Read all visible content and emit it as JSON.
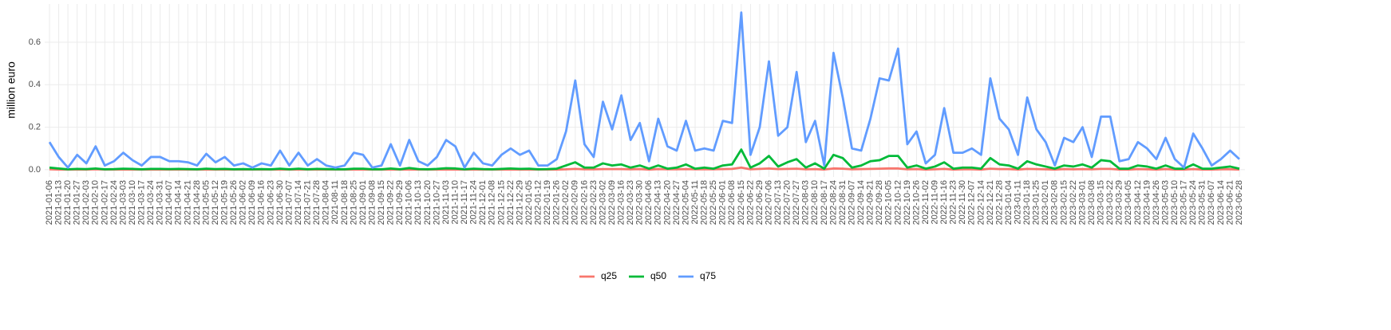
{
  "chart_data": {
    "type": "line",
    "y_label": "million euro",
    "categories": [
      "2021-01-06",
      "2021-01-13",
      "2021-01-20",
      "2021-01-27",
      "2021-02-03",
      "2021-02-10",
      "2021-02-17",
      "2021-02-24",
      "2021-03-03",
      "2021-03-10",
      "2021-03-17",
      "2021-03-24",
      "2021-03-31",
      "2021-04-07",
      "2021-04-14",
      "2021-04-21",
      "2021-04-28",
      "2021-05-05",
      "2021-05-12",
      "2021-05-19",
      "2021-05-26",
      "2021-06-02",
      "2021-06-09",
      "2021-06-16",
      "2021-06-23",
      "2021-06-30",
      "2021-07-07",
      "2021-07-14",
      "2021-07-21",
      "2021-07-28",
      "2021-08-04",
      "2021-08-11",
      "2021-08-18",
      "2021-08-25",
      "2021-09-01",
      "2021-09-08",
      "2021-09-15",
      "2021-09-22",
      "2021-09-29",
      "2021-10-06",
      "2021-10-13",
      "2021-10-20",
      "2021-10-27",
      "2021-11-03",
      "2021-11-10",
      "2021-11-17",
      "2021-11-24",
      "2021-12-01",
      "2021-12-08",
      "2021-12-15",
      "2021-12-22",
      "2021-12-29",
      "2022-01-05",
      "2022-01-12",
      "2022-01-19",
      "2022-01-26",
      "2022-02-02",
      "2022-02-09",
      "2022-02-16",
      "2022-02-23",
      "2022-03-02",
      "2022-03-09",
      "2022-03-16",
      "2022-03-23",
      "2022-03-30",
      "2022-04-06",
      "2022-04-13",
      "2022-04-20",
      "2022-04-27",
      "2022-05-04",
      "2022-05-11",
      "2022-05-18",
      "2022-05-25",
      "2022-06-01",
      "2022-06-08",
      "2022-06-15",
      "2022-06-22",
      "2022-06-29",
      "2022-07-06",
      "2022-07-13",
      "2022-07-20",
      "2022-07-27",
      "2022-08-03",
      "2022-08-10",
      "2022-08-17",
      "2022-08-24",
      "2022-08-31",
      "2022-09-07",
      "2022-09-14",
      "2022-09-21",
      "2022-09-28",
      "2022-10-05",
      "2022-10-12",
      "2022-10-19",
      "2022-10-26",
      "2022-11-02",
      "2022-11-09",
      "2022-11-16",
      "2022-11-23",
      "2022-11-30",
      "2022-12-07",
      "2022-12-14",
      "2022-12-21",
      "2022-12-28",
      "2023-01-04",
      "2023-01-11",
      "2023-01-18",
      "2023-01-25",
      "2023-02-01",
      "2023-02-08",
      "2023-02-15",
      "2023-02-22",
      "2023-03-01",
      "2023-03-08",
      "2023-03-15",
      "2023-03-22",
      "2023-03-29",
      "2023-04-05",
      "2023-04-12",
      "2023-04-19",
      "2023-04-26",
      "2023-05-03",
      "2023-05-10",
      "2023-05-17",
      "2023-05-24",
      "2023-05-31",
      "2023-06-07",
      "2023-06-14",
      "2023-06-21",
      "2023-06-28"
    ],
    "series": [
      {
        "name": "q25",
        "color": "#F8766D",
        "values": [
          0.002,
          0.001,
          0.001,
          0.001,
          0.001,
          0.002,
          0.001,
          0.001,
          0.001,
          0.001,
          0.001,
          0.001,
          0.001,
          0.001,
          0.001,
          0.001,
          0.001,
          0.001,
          0.001,
          0.001,
          0.001,
          0.001,
          0.001,
          0.001,
          0.001,
          0.001,
          0.001,
          0.001,
          0.001,
          0.001,
          0.001,
          0.001,
          0.001,
          0.001,
          0.001,
          0.001,
          0.001,
          0.001,
          0.001,
          0.001,
          0.001,
          0.001,
          0.001,
          0.001,
          0.001,
          0.001,
          0.001,
          0.001,
          0.001,
          0.001,
          0.001,
          0.001,
          0.001,
          0.001,
          0.001,
          0.001,
          0.002,
          0.004,
          0.002,
          0.002,
          0.003,
          0.003,
          0.003,
          0.002,
          0.003,
          0.001,
          0.003,
          0.002,
          0.002,
          0.003,
          0.002,
          0.002,
          0.002,
          0.003,
          0.004,
          0.01,
          0.002,
          0.004,
          0.006,
          0.003,
          0.004,
          0.005,
          0.002,
          0.003,
          0.001,
          0.006,
          0.005,
          0.002,
          0.003,
          0.004,
          0.005,
          0.006,
          0.006,
          0.002,
          0.003,
          0.001,
          0.002,
          0.004,
          0.001,
          0.002,
          0.002,
          0.001,
          0.005,
          0.003,
          0.003,
          0.001,
          0.004,
          0.003,
          0.002,
          0.001,
          0.003,
          0.002,
          0.003,
          0.002,
          0.004,
          0.004,
          0.001,
          0.001,
          0.003,
          0.002,
          0.001,
          0.003,
          0.001,
          0.001,
          0.003,
          0.001,
          0.001,
          0.002,
          0.002,
          0.001
        ]
      },
      {
        "name": "q50",
        "color": "#00BA38",
        "values": [
          0.01,
          0.006,
          0.002,
          0.004,
          0.003,
          0.006,
          0.002,
          0.003,
          0.005,
          0.004,
          0.002,
          0.004,
          0.004,
          0.003,
          0.004,
          0.003,
          0.002,
          0.005,
          0.003,
          0.004,
          0.002,
          0.003,
          0.002,
          0.003,
          0.002,
          0.005,
          0.002,
          0.005,
          0.002,
          0.004,
          0.003,
          0.002,
          0.002,
          0.005,
          0.005,
          0.002,
          0.002,
          0.006,
          0.002,
          0.008,
          0.003,
          0.002,
          0.004,
          0.007,
          0.006,
          0.002,
          0.005,
          0.003,
          0.002,
          0.004,
          0.006,
          0.004,
          0.005,
          0.002,
          0.003,
          0.005,
          0.02,
          0.035,
          0.01,
          0.01,
          0.03,
          0.02,
          0.025,
          0.01,
          0.02,
          0.005,
          0.02,
          0.005,
          0.01,
          0.025,
          0.005,
          0.01,
          0.005,
          0.02,
          0.025,
          0.095,
          0.01,
          0.03,
          0.065,
          0.015,
          0.035,
          0.05,
          0.01,
          0.03,
          0.005,
          0.07,
          0.055,
          0.01,
          0.02,
          0.04,
          0.045,
          0.065,
          0.065,
          0.01,
          0.02,
          0.005,
          0.015,
          0.035,
          0.005,
          0.01,
          0.01,
          0.005,
          0.055,
          0.025,
          0.02,
          0.005,
          0.04,
          0.025,
          0.015,
          0.005,
          0.02,
          0.015,
          0.025,
          0.01,
          0.045,
          0.04,
          0.005,
          0.005,
          0.02,
          0.015,
          0.005,
          0.02,
          0.005,
          0.005,
          0.025,
          0.005,
          0.005,
          0.01,
          0.015,
          0.005
        ]
      },
      {
        "name": "q75",
        "color": "#619CFF",
        "values": [
          0.13,
          0.06,
          0.01,
          0.07,
          0.03,
          0.11,
          0.02,
          0.04,
          0.08,
          0.045,
          0.02,
          0.06,
          0.06,
          0.04,
          0.04,
          0.035,
          0.02,
          0.075,
          0.035,
          0.06,
          0.02,
          0.03,
          0.01,
          0.03,
          0.02,
          0.09,
          0.02,
          0.08,
          0.02,
          0.05,
          0.02,
          0.01,
          0.02,
          0.08,
          0.07,
          0.01,
          0.02,
          0.12,
          0.02,
          0.14,
          0.04,
          0.02,
          0.06,
          0.14,
          0.11,
          0.01,
          0.08,
          0.03,
          0.02,
          0.07,
          0.1,
          0.07,
          0.09,
          0.02,
          0.02,
          0.05,
          0.18,
          0.42,
          0.12,
          0.06,
          0.32,
          0.19,
          0.35,
          0.14,
          0.22,
          0.04,
          0.24,
          0.11,
          0.09,
          0.23,
          0.09,
          0.1,
          0.09,
          0.23,
          0.22,
          0.74,
          0.07,
          0.2,
          0.51,
          0.16,
          0.2,
          0.46,
          0.13,
          0.23,
          0.02,
          0.55,
          0.34,
          0.1,
          0.09,
          0.24,
          0.43,
          0.42,
          0.57,
          0.12,
          0.18,
          0.03,
          0.07,
          0.29,
          0.08,
          0.08,
          0.1,
          0.07,
          0.43,
          0.24,
          0.19,
          0.07,
          0.34,
          0.19,
          0.13,
          0.02,
          0.15,
          0.13,
          0.2,
          0.06,
          0.25,
          0.25,
          0.04,
          0.05,
          0.13,
          0.1,
          0.05,
          0.15,
          0.05,
          0.01,
          0.17,
          0.1,
          0.02,
          0.05,
          0.09,
          0.05
        ]
      }
    ],
    "ylim": [
      -0.034,
      0.78
    ],
    "yticks": [
      {
        "value": 0,
        "label": "0.0"
      },
      0.2,
      0.4,
      0.6
    ],
    "grid": true,
    "legend": "bottom"
  }
}
